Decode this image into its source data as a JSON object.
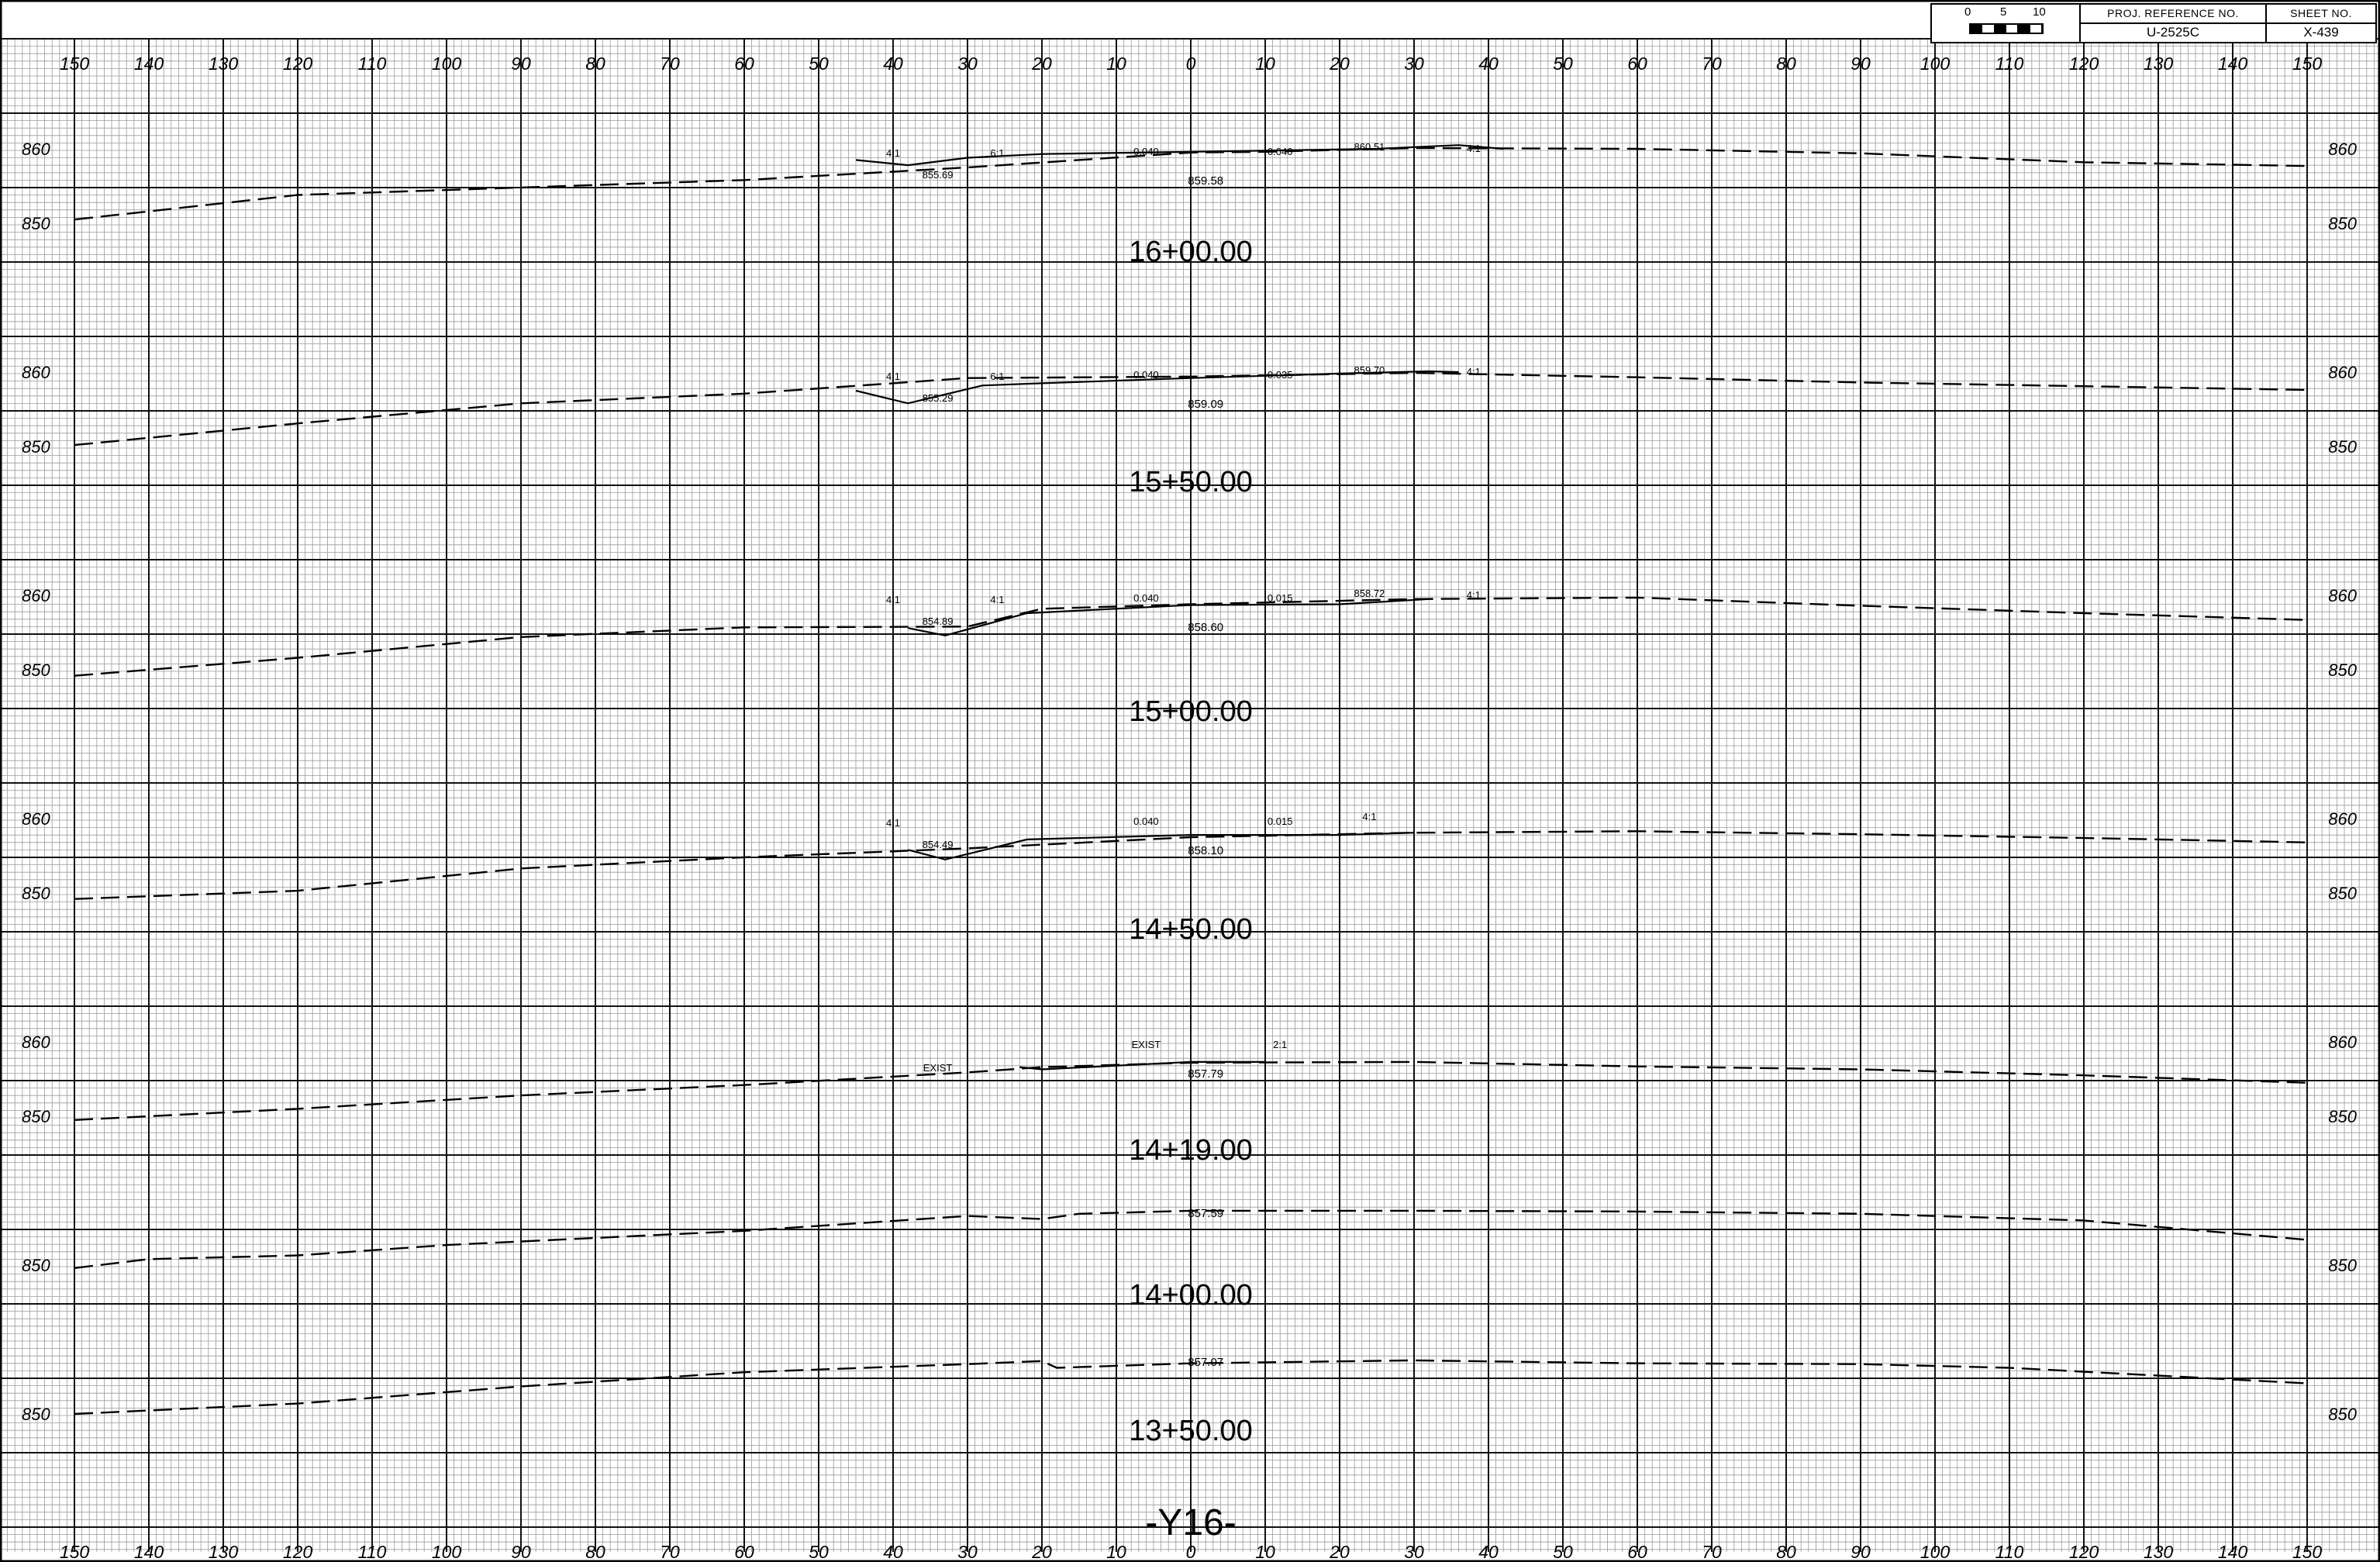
{
  "sheet": {
    "title": "-Y16-",
    "offset_labels": [
      "150",
      "140",
      "130",
      "120",
      "110",
      "100",
      "90",
      "80",
      "70",
      "60",
      "50",
      "40",
      "30",
      "20",
      "10",
      "0",
      "10",
      "20",
      "30",
      "40",
      "50",
      "60",
      "70",
      "80",
      "90",
      "100",
      "110",
      "120",
      "130",
      "140",
      "150"
    ]
  },
  "title_block": {
    "scale_labels": [
      "0",
      "5",
      "10"
    ],
    "proj_ref_label": "PROJ. REFERENCE NO.",
    "proj_ref_value": "U-2525C",
    "sheet_no_label": "SHEET NO.",
    "sheet_no_value": "X-439"
  },
  "sections": [
    {
      "station": "16+00.00",
      "elevations": [
        "860",
        "850"
      ],
      "centerline_elev": "859.58",
      "annotations": [
        "855.69",
        "0.040",
        "0.040",
        "860.51",
        "4:1",
        "4:1",
        "6:1"
      ],
      "ground": [
        [
          -150,
          850.5
        ],
        [
          -120,
          853.8
        ],
        [
          -90,
          854.8
        ],
        [
          -60,
          855.8
        ],
        [
          -30,
          857.5
        ],
        [
          0,
          859.5
        ],
        [
          10,
          859.6
        ],
        [
          30,
          860.1
        ],
        [
          60,
          860.0
        ],
        [
          90,
          859.4
        ],
        [
          120,
          858.2
        ],
        [
          150,
          857.7
        ]
      ],
      "design": [
        [
          -45,
          858.5
        ],
        [
          -38,
          857.8
        ],
        [
          -30,
          858.8
        ],
        [
          -20,
          859.3
        ],
        [
          0,
          859.6
        ],
        [
          25,
          860.0
        ],
        [
          36,
          860.5
        ],
        [
          42,
          860.0
        ]
      ]
    },
    {
      "station": "15+50.00",
      "elevations": [
        "860",
        "850"
      ],
      "centerline_elev": "859.09",
      "annotations": [
        "855.29",
        "0.040",
        "0.035",
        "859.70",
        "4:1",
        "4:1",
        "6:1"
      ],
      "ground": [
        [
          -150,
          850.2
        ],
        [
          -120,
          853.1
        ],
        [
          -90,
          855.8
        ],
        [
          -60,
          857.1
        ],
        [
          -30,
          859.2
        ],
        [
          0,
          859.4
        ],
        [
          30,
          859.9
        ],
        [
          60,
          859.3
        ],
        [
          90,
          858.6
        ],
        [
          120,
          858.1
        ],
        [
          150,
          857.6
        ]
      ],
      "design": [
        [
          -45,
          857.5
        ],
        [
          -38,
          855.8
        ],
        [
          -28,
          858.2
        ],
        [
          -20,
          858.5
        ],
        [
          0,
          859.2
        ],
        [
          20,
          859.8
        ],
        [
          32,
          860.1
        ],
        [
          36,
          860.0
        ]
      ]
    },
    {
      "station": "15+00.00",
      "elevations": [
        "860",
        "850"
      ],
      "centerline_elev": "858.60",
      "annotations": [
        "854.89",
        "0.040",
        "0.015",
        "858.72",
        "4:1",
        "4:1",
        "4:1"
      ],
      "ground": [
        [
          -150,
          849.2
        ],
        [
          -120,
          851.6
        ],
        [
          -90,
          854.4
        ],
        [
          -60,
          855.7
        ],
        [
          -30,
          855.8
        ],
        [
          -20,
          858.2
        ],
        [
          0,
          858.8
        ],
        [
          30,
          859.5
        ],
        [
          60,
          859.7
        ],
        [
          90,
          858.6
        ],
        [
          120,
          857.6
        ],
        [
          150,
          856.7
        ]
      ],
      "design": [
        [
          -38,
          855.6
        ],
        [
          -33,
          854.6
        ],
        [
          -22,
          857.6
        ],
        [
          0,
          858.7
        ],
        [
          20,
          858.8
        ],
        [
          32,
          859.5
        ]
      ]
    },
    {
      "station": "14+50.00",
      "elevations": [
        "860",
        "850"
      ],
      "centerline_elev": "858.10",
      "annotations": [
        "854.49",
        "0.040",
        "0.015",
        "4:1",
        "4:1"
      ],
      "ground": [
        [
          -150,
          849.2
        ],
        [
          -120,
          850.3
        ],
        [
          -90,
          853.3
        ],
        [
          -60,
          854.8
        ],
        [
          -30,
          856.0
        ],
        [
          0,
          857.5
        ],
        [
          30,
          858.1
        ],
        [
          60,
          858.3
        ],
        [
          90,
          857.9
        ],
        [
          120,
          857.4
        ],
        [
          150,
          856.8
        ]
      ],
      "design": [
        [
          -38,
          855.8
        ],
        [
          -33,
          854.5
        ],
        [
          -22,
          857.2
        ],
        [
          0,
          857.8
        ],
        [
          20,
          857.8
        ],
        [
          30,
          858.1
        ]
      ]
    },
    {
      "station": "14+19.00",
      "elevations": [
        "860",
        "850"
      ],
      "centerline_elev": "857.79",
      "annotations": [
        "EXIST",
        "EXIST",
        "2:1"
      ],
      "ground": [
        [
          -150,
          849.5
        ],
        [
          -120,
          851.0
        ],
        [
          -90,
          852.8
        ],
        [
          -60,
          854.2
        ],
        [
          -30,
          855.9
        ],
        [
          -20,
          856.6
        ],
        [
          0,
          857.2
        ],
        [
          30,
          857.3
        ],
        [
          60,
          856.7
        ],
        [
          90,
          856.3
        ],
        [
          120,
          855.5
        ],
        [
          150,
          854.5
        ]
      ],
      "design": [
        [
          -23,
          856.6
        ],
        [
          -20,
          856.3
        ],
        [
          0,
          857.3
        ],
        [
          10,
          857.3
        ]
      ]
    },
    {
      "station": "14+00.00",
      "elevations": [
        "850"
      ],
      "centerline_elev": "857.59",
      "annotations": [],
      "ground": [
        [
          -150,
          849.6
        ],
        [
          -140,
          850.8
        ],
        [
          -120,
          851.3
        ],
        [
          -100,
          852.7
        ],
        [
          -60,
          854.6
        ],
        [
          -30,
          856.6
        ],
        [
          -20,
          856.2
        ],
        [
          -15,
          856.9
        ],
        [
          0,
          857.3
        ],
        [
          30,
          857.3
        ],
        [
          60,
          857.2
        ],
        [
          90,
          856.9
        ],
        [
          120,
          856.0
        ],
        [
          150,
          853.4
        ]
      ],
      "design": []
    },
    {
      "station": "13+50.00",
      "elevations": [
        "850"
      ],
      "centerline_elev": "857.07",
      "annotations": [],
      "ground": [
        [
          -150,
          850.0
        ],
        [
          -120,
          851.4
        ],
        [
          -90,
          853.7
        ],
        [
          -60,
          855.6
        ],
        [
          -30,
          856.7
        ],
        [
          -20,
          857.1
        ],
        [
          -18,
          856.2
        ],
        [
          0,
          856.8
        ],
        [
          30,
          857.2
        ],
        [
          60,
          856.8
        ],
        [
          90,
          856.7
        ],
        [
          110,
          856.2
        ],
        [
          150,
          854.1
        ]
      ],
      "design": []
    }
  ]
}
